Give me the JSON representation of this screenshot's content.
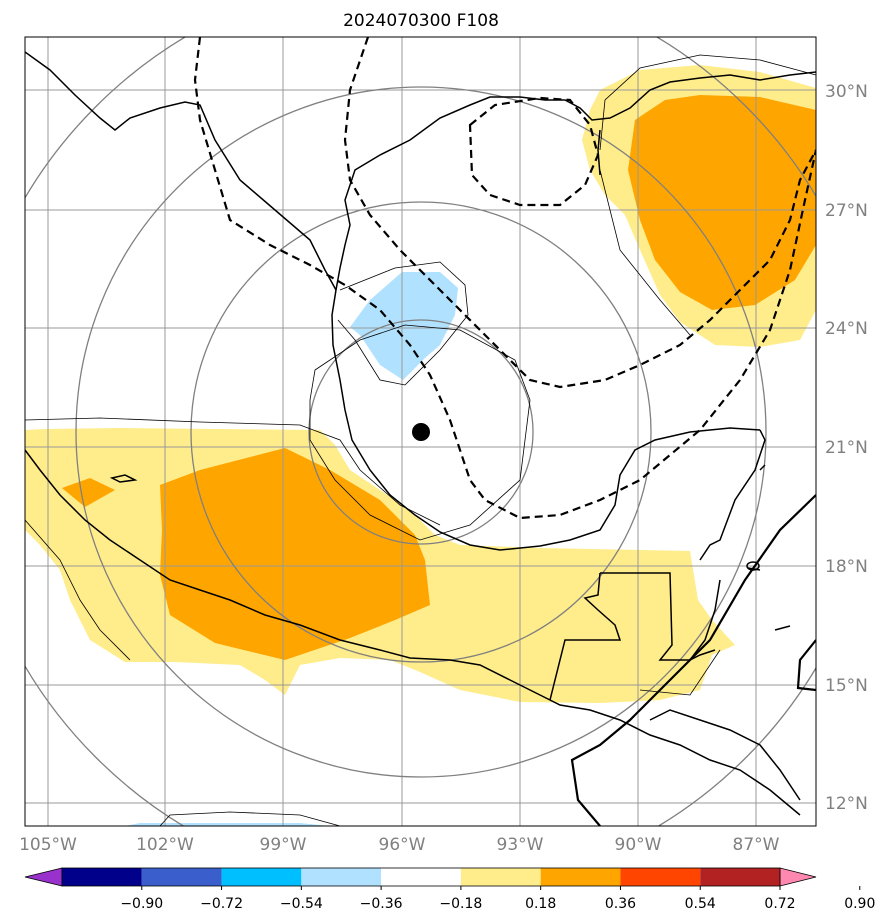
{
  "title": "2024070300 F108",
  "latitude_labels": [
    "30°N",
    "27°N",
    "24°N",
    "21°N",
    "18°N",
    "15°N",
    "12°N"
  ],
  "longitude_labels": [
    "105°W",
    "102°W",
    "99°W",
    "96°W",
    "93°W",
    "90°W",
    "87°W"
  ],
  "colorbar": {
    "tick_labels": [
      "−0.90",
      "−0.72",
      "−0.54",
      "−0.36",
      "−0.18",
      "0.18",
      "0.36",
      "0.54",
      "0.72",
      "0.90"
    ],
    "colors": [
      "#9932cc",
      "#00008b",
      "#3a5fcd",
      "#00bfff",
      "#b0e2ff",
      "#ffffff",
      "#ffec8b",
      "#ffa500",
      "#ff4500",
      "#b22222",
      "#ff88b0"
    ]
  },
  "map_colors": {
    "light_yellow": "#ffec8b",
    "orange": "#ffa500",
    "light_blue": "#b0e2ff",
    "grid": "#999999",
    "range_rings": "#808080"
  },
  "storm_center_marker": "black-dot"
}
